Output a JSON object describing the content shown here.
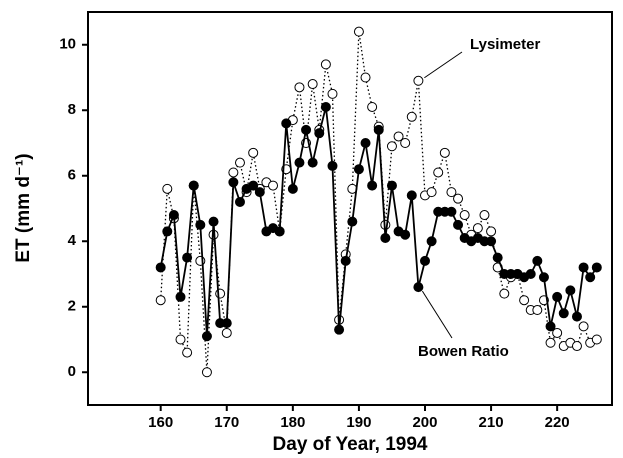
{
  "chart_data": {
    "type": "line",
    "x_label": "Day of Year, 1994",
    "y_label": "ET (mm d⁻¹)",
    "x": [
      160,
      161,
      162,
      163,
      164,
      165,
      166,
      167,
      168,
      169,
      170,
      171,
      172,
      173,
      174,
      175,
      176,
      177,
      178,
      179,
      180,
      181,
      182,
      183,
      184,
      185,
      186,
      187,
      188,
      189,
      190,
      191,
      192,
      193,
      194,
      195,
      196,
      197,
      198,
      199,
      200,
      201,
      202,
      203,
      204,
      205,
      206,
      207,
      208,
      209,
      210,
      211,
      212,
      213,
      214,
      215,
      216,
      217,
      218,
      219,
      220,
      221,
      222,
      223,
      224,
      225,
      226
    ],
    "series": [
      {
        "name": "Bowen Ratio",
        "color": "#000000",
        "line": "solid",
        "marker": "filled",
        "values": [
          3.2,
          4.3,
          4.8,
          2.3,
          3.5,
          5.7,
          4.5,
          1.1,
          4.6,
          1.5,
          1.5,
          5.8,
          5.2,
          5.6,
          5.7,
          5.5,
          4.3,
          4.4,
          4.3,
          7.6,
          5.6,
          6.4,
          7.4,
          6.4,
          7.3,
          8.1,
          6.3,
          1.3,
          3.4,
          4.6,
          6.2,
          7.0,
          5.7,
          7.4,
          4.1,
          5.7,
          4.3,
          4.2,
          5.4,
          2.6,
          3.4,
          4.0,
          4.9,
          4.9,
          4.9,
          4.5,
          4.1,
          4.0,
          4.1,
          4.0,
          4.0,
          3.5,
          3.0,
          3.0,
          3.0,
          2.9,
          3.0,
          3.4,
          2.9,
          1.4,
          2.3,
          1.8,
          2.5,
          1.7,
          3.2,
          2.9,
          3.2
        ]
      },
      {
        "name": "Lysimeter",
        "color": "#000000",
        "line": "dotted",
        "marker": "open",
        "values": [
          2.2,
          5.6,
          4.7,
          1.0,
          0.6,
          5.7,
          3.4,
          0.0,
          4.2,
          2.4,
          1.2,
          6.1,
          6.4,
          5.5,
          6.7,
          5.6,
          5.8,
          5.7,
          4.3,
          6.2,
          7.7,
          8.7,
          7.0,
          8.8,
          7.4,
          9.4,
          8.5,
          1.6,
          3.6,
          5.6,
          10.4,
          9.0,
          8.1,
          7.5,
          4.5,
          6.9,
          7.2,
          7.0,
          7.8,
          8.9,
          5.4,
          5.5,
          6.1,
          6.7,
          5.5,
          5.3,
          4.8,
          4.2,
          4.4,
          4.8,
          4.3,
          3.2,
          2.4,
          2.9,
          3.0,
          2.2,
          1.9,
          1.9,
          2.2,
          0.9,
          1.2,
          0.8,
          0.9,
          0.8,
          1.4,
          0.9,
          1.0
        ]
      }
    ],
    "xlim": [
      149,
      228.3
    ],
    "xticks": [
      160,
      170,
      180,
      190,
      200,
      210,
      220
    ],
    "ylim": [
      -1,
      11
    ],
    "yticks": [
      0,
      2,
      4,
      6,
      8,
      10
    ]
  }
}
